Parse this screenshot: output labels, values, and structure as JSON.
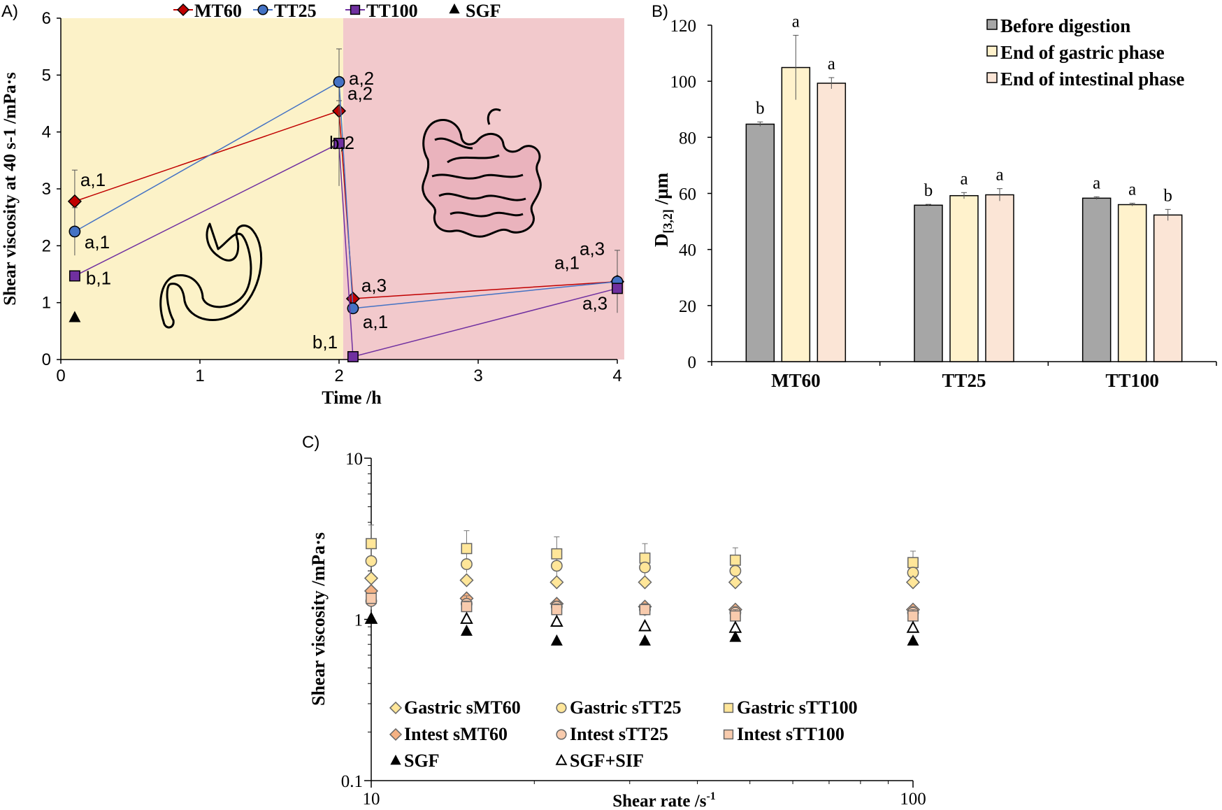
{
  "chart_data": [
    {
      "panel_label": "A)",
      "type": "line",
      "xlabel": "Time /h",
      "ylabel": "Shear viscosity at 40 s-1 /mPa·s",
      "xlim": [
        0,
        4
      ],
      "ylim": [
        0,
        6
      ],
      "xticks": [
        "0",
        "1",
        "2",
        "3",
        "4"
      ],
      "yticks": [
        "0",
        "1",
        "2",
        "3",
        "4",
        "5",
        "6"
      ],
      "regions": [
        {
          "name": "gastric",
          "x_from": 0,
          "x_to": 2.03,
          "color": "#fcf2c8"
        },
        {
          "name": "intestinal",
          "x_from": 2.03,
          "x_to": 4.05,
          "color": "#f2c9cc"
        }
      ],
      "legend": [
        "MT60",
        "TT25",
        "TT100",
        "SGF"
      ],
      "series": [
        {
          "name": "MT60",
          "color": "#c00000",
          "marker": "diamond",
          "points": [
            {
              "x": 0.1,
              "y": 2.78,
              "err": 0.55,
              "label": "a,1"
            },
            {
              "x": 2.0,
              "y": 4.37,
              "err": 0.0,
              "label": "a,2"
            },
            {
              "x": 2.1,
              "y": 1.07,
              "err": 0.0,
              "label": "a,3"
            },
            {
              "x": 4.0,
              "y": 1.37,
              "err": 0.0,
              "label": "a,1"
            }
          ]
        },
        {
          "name": "TT25",
          "color": "#4472c4",
          "marker": "circle",
          "points": [
            {
              "x": 0.1,
              "y": 2.25,
              "err": 0.42,
              "label": "a,1"
            },
            {
              "x": 2.0,
              "y": 4.88,
              "err": 0.58,
              "label": "a,2"
            },
            {
              "x": 2.1,
              "y": 0.9,
              "err": 0.0,
              "label": "a,1"
            },
            {
              "x": 4.0,
              "y": 1.37,
              "err": 0.55,
              "label": "a,3"
            }
          ]
        },
        {
          "name": "TT100",
          "color": "#7030a0",
          "marker": "square",
          "points": [
            {
              "x": 0.1,
              "y": 1.47,
              "err": 0.0,
              "label": "b,1"
            },
            {
              "x": 2.0,
              "y": 3.8,
              "err": 0.75,
              "label": "b,2"
            },
            {
              "x": 2.1,
              "y": 0.05,
              "err": 0.0,
              "label": "b,1"
            },
            {
              "x": 4.0,
              "y": 1.25,
              "err": 0.0,
              "label": "a,3"
            }
          ]
        },
        {
          "name": "SGF",
          "color": "#000000",
          "marker": "triangle",
          "points": [
            {
              "x": 0.1,
              "y": 0.73
            }
          ]
        }
      ]
    },
    {
      "panel_label": "B)",
      "type": "bar",
      "xlabel": "",
      "ylabel_main": "D",
      "ylabel_sub": "[3,2]",
      "ylabel_tail": " /µm",
      "ylim": [
        0,
        120
      ],
      "yticks": [
        "0",
        "20",
        "40",
        "60",
        "80",
        "100",
        "120"
      ],
      "categories": [
        "MT60",
        "TT25",
        "TT100"
      ],
      "series": [
        {
          "name": "Before digestion",
          "color": "#a6a6a6",
          "values": [
            84.7,
            55.8,
            58.3
          ],
          "errors": [
            0.8,
            0.3,
            0.5
          ],
          "letters": [
            "b",
            "b",
            "a"
          ]
        },
        {
          "name": "End of gastric phase",
          "color": "#fff2cc",
          "values": [
            104.9,
            59.2,
            56.0
          ],
          "errors": [
            11.5,
            1.1,
            0.5
          ],
          "letters": [
            "a",
            "a",
            "a"
          ]
        },
        {
          "name": "End of intestinal phase",
          "color": "#fbe5d6",
          "values": [
            99.3,
            59.5,
            52.3
          ],
          "errors": [
            2.0,
            2.2,
            2.0
          ],
          "letters": [
            "a",
            "a",
            "b"
          ]
        }
      ]
    },
    {
      "panel_label": "C)",
      "type": "scatter",
      "xscale": "log",
      "yscale": "log",
      "xlabel_main": "Shear rate /s",
      "xlabel_sup": "-1",
      "ylabel": "Shear viscosity /mPa·s",
      "xlim": [
        10,
        100
      ],
      "ylim": [
        0.1,
        10
      ],
      "xticks": [
        "10",
        "100"
      ],
      "yticks": [
        "0.1",
        "1",
        "10"
      ],
      "x": [
        10,
        15,
        22,
        32,
        47,
        100
      ],
      "series": [
        {
          "name": "Gastric sTT100",
          "marker": "square",
          "fill": "#ffe699",
          "values": [
            2.95,
            2.75,
            2.55,
            2.4,
            2.33,
            2.25
          ],
          "errors": [
            0.9,
            0.8,
            0.7,
            0.55,
            0.45,
            0.4
          ]
        },
        {
          "name": "Gastric sTT25",
          "marker": "circle",
          "fill": "#ffe699",
          "values": [
            2.3,
            2.2,
            2.15,
            2.1,
            2.0,
            1.95
          ],
          "errors": [
            0.0,
            0.0,
            0.0,
            0.0,
            0.0,
            0.0
          ]
        },
        {
          "name": "Gastric sMT60",
          "marker": "diamond",
          "fill": "#ffe699",
          "values": [
            1.8,
            1.75,
            1.7,
            1.7,
            1.7,
            1.7
          ],
          "errors": [
            0.0,
            0.0,
            0.0,
            0.0,
            0.0,
            0.0
          ]
        },
        {
          "name": "Intest sMT60",
          "marker": "diamond",
          "fill": "#f4b183",
          "values": [
            1.5,
            1.35,
            1.25,
            1.2,
            1.15,
            1.15
          ],
          "errors": [
            0.0,
            0.0,
            0.0,
            0.0,
            0.0,
            0.0
          ]
        },
        {
          "name": "Intest sTT25",
          "marker": "circle",
          "fill": "#f8cbad",
          "values": [
            1.3,
            1.25,
            1.2,
            1.15,
            1.1,
            1.1
          ],
          "errors": [
            0.15,
            0.15,
            0.1,
            0.1,
            0.1,
            0.1
          ]
        },
        {
          "name": "Intest sTT100",
          "marker": "square",
          "fill": "#f8cbad",
          "values": [
            1.35,
            1.2,
            1.15,
            1.15,
            1.05,
            1.05
          ],
          "errors": [
            0.1,
            0.1,
            0.1,
            0.1,
            0.1,
            0.1
          ]
        },
        {
          "name": "SGF+SIF",
          "marker": "triangle-open",
          "fill": "#ffffff",
          "values": [
            1.0,
            1.0,
            0.96,
            0.9,
            0.88,
            0.88
          ],
          "errors": [
            0.0,
            0.0,
            0.0,
            0.0,
            0.0,
            0.0
          ]
        },
        {
          "name": "SGF",
          "marker": "triangle",
          "fill": "#000000",
          "values": [
            1.0,
            0.84,
            0.73,
            0.73,
            0.77,
            0.73
          ],
          "errors": [
            0.0,
            0.0,
            0.0,
            0.0,
            0.0,
            0.0
          ]
        }
      ],
      "legend": [
        "Gastric sMT60",
        "Gastric sTT25",
        "Gastric sTT100",
        "Intest sMT60",
        "Intest sTT25",
        "Intest sTT100",
        "SGF",
        "SGF+SIF"
      ]
    }
  ]
}
